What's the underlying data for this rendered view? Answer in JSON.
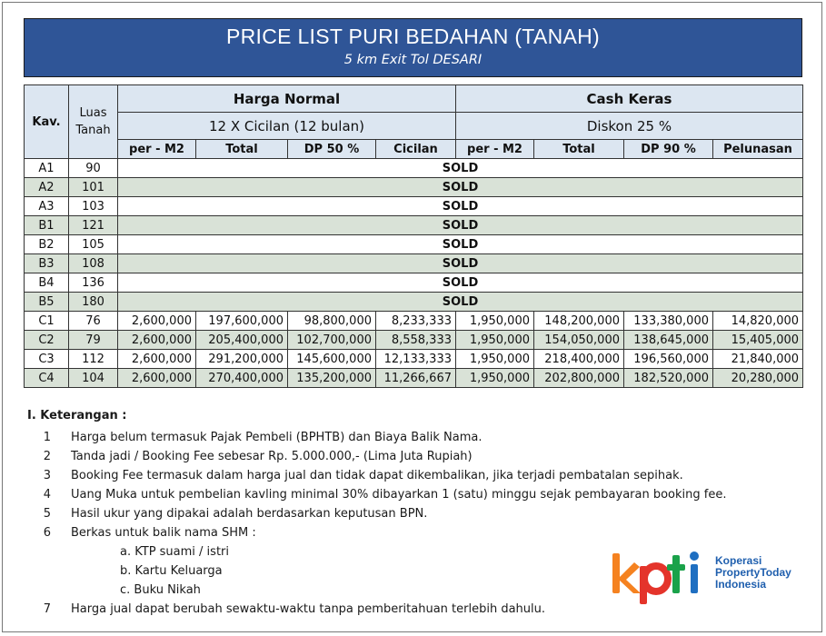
{
  "banner": {
    "title": "PRICE LIST PURI BEDAHAN (TANAH)",
    "subtitle": "5 km Exit Tol DESARI"
  },
  "table": {
    "col_kav": "Kav.",
    "col_luas": "Luas Tanah",
    "group1_title": "Harga Normal",
    "group1_sub": "12 X Cicilan (12 bulan)",
    "group2_title": "Cash Keras",
    "group2_sub": "Diskon 25 %",
    "sub_headers": [
      "per - M2",
      "Total",
      "DP 50 %",
      "Cicilan",
      "per - M2",
      "Total",
      "DP 90 %",
      "Pelunasan"
    ],
    "sold_label": "SOLD",
    "sold_rows": [
      {
        "kav": "A1",
        "luas": "90"
      },
      {
        "kav": "A2",
        "luas": "101"
      },
      {
        "kav": "A3",
        "luas": "103"
      },
      {
        "kav": "B1",
        "luas": "121"
      },
      {
        "kav": "B2",
        "luas": "105"
      },
      {
        "kav": "B3",
        "luas": "108"
      },
      {
        "kav": "B4",
        "luas": "136"
      },
      {
        "kav": "B5",
        "luas": "180"
      }
    ],
    "price_rows": [
      {
        "kav": "C1",
        "luas": "76",
        "cells": [
          "2,600,000",
          "197,600,000",
          "98,800,000",
          "8,233,333",
          "1,950,000",
          "148,200,000",
          "133,380,000",
          "14,820,000"
        ]
      },
      {
        "kav": "C2",
        "luas": "79",
        "cells": [
          "2,600,000",
          "205,400,000",
          "102,700,000",
          "8,558,333",
          "1,950,000",
          "154,050,000",
          "138,645,000",
          "15,405,000"
        ]
      },
      {
        "kav": "C3",
        "luas": "112",
        "cells": [
          "2,600,000",
          "291,200,000",
          "145,600,000",
          "12,133,333",
          "1,950,000",
          "218,400,000",
          "196,560,000",
          "21,840,000"
        ]
      },
      {
        "kav": "C4",
        "luas": "104",
        "cells": [
          "2,600,000",
          "270,400,000",
          "135,200,000",
          "11,266,667",
          "1,950,000",
          "202,800,000",
          "182,520,000",
          "20,280,000"
        ]
      }
    ]
  },
  "notes": {
    "heading": "I. Keterangan :",
    "items": [
      {
        "num": "1",
        "text": "Harga belum termasuk Pajak Pembeli (BPHTB) dan Biaya Balik Nama."
      },
      {
        "num": "2",
        "text": "Tanda jadi / Booking Fee sebesar Rp. 5.000.000,- (Lima Juta Rupiah)"
      },
      {
        "num": "3",
        "text": "Booking Fee termasuk dalam harga jual dan tidak dapat dikembalikan, jika terjadi pembatalan sepihak."
      },
      {
        "num": "4",
        "text": "Uang Muka untuk pembelian kavling minimal 30% dibayarkan 1 (satu) minggu sejak pembayaran booking fee."
      },
      {
        "num": "5",
        "text": "Hasil ukur yang dipakai adalah berdasarkan keputusan BPN."
      },
      {
        "num": "6",
        "text": "Berkas untuk balik nama SHM :"
      }
    ],
    "sub_items": [
      "a. KTP suami / istri",
      "b. Kartu Keluarga",
      "c. Buku Nikah"
    ],
    "last_item": {
      "num": "7",
      "text": "Harga jual dapat berubah sewaktu-waktu tanpa pemberitahuan terlebih dahulu."
    }
  },
  "logo": {
    "mark": "kpti",
    "line1": "Koperasi",
    "line2": "PropertyToday",
    "line3": "Indonesia",
    "colors": {
      "k": "#f58220",
      "p": "#e4342b",
      "t": "#1aa24a",
      "i": "#1f6fc1",
      "text": "#1f5fae"
    }
  },
  "colors": {
    "banner_bg": "#2f5597",
    "header_bg": "#dce6f1",
    "row_shade": "#d9e2d7"
  }
}
